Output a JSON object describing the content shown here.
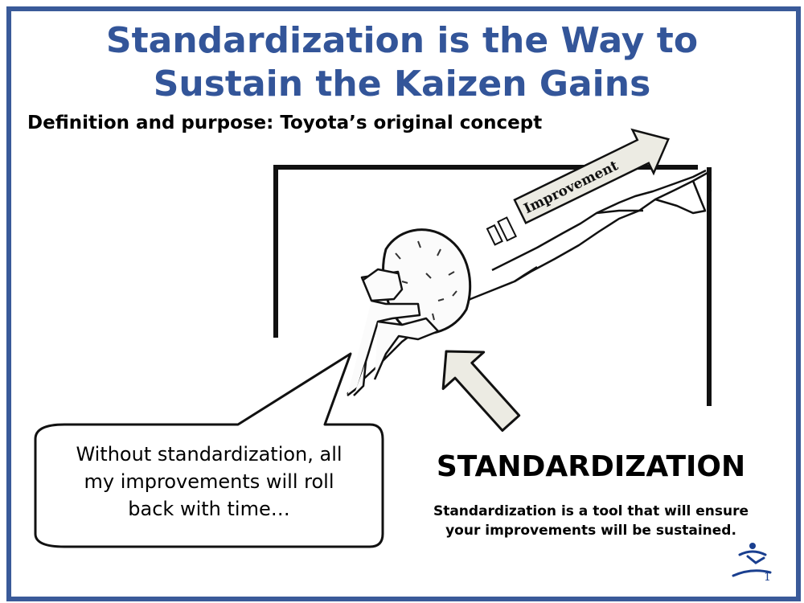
{
  "slide": {
    "title_line1": "Standardization is the Way to",
    "title_line2": "Sustain the Kaizen Gains",
    "subtitle": "Definition and purpose: Toyota’s original concept",
    "arrow_label": "Improvement",
    "speech_bubble_line1": "Without standardization, all",
    "speech_bubble_line2": "my improvements will roll",
    "speech_bubble_line3": "back with time…",
    "standardization_heading": "STANDARDIZATION",
    "standardization_desc_line1": "Standardization is a tool that will ensure",
    "standardization_desc_line2": "your improvements will be sustained.",
    "page_number": "1",
    "logo_icon": "running-figure-logo-icon"
  },
  "colors": {
    "frame_border": "#3a5a99",
    "title": "#335599",
    "arrow_fill": "#ecebe3",
    "logo": "#1a3f8f"
  }
}
